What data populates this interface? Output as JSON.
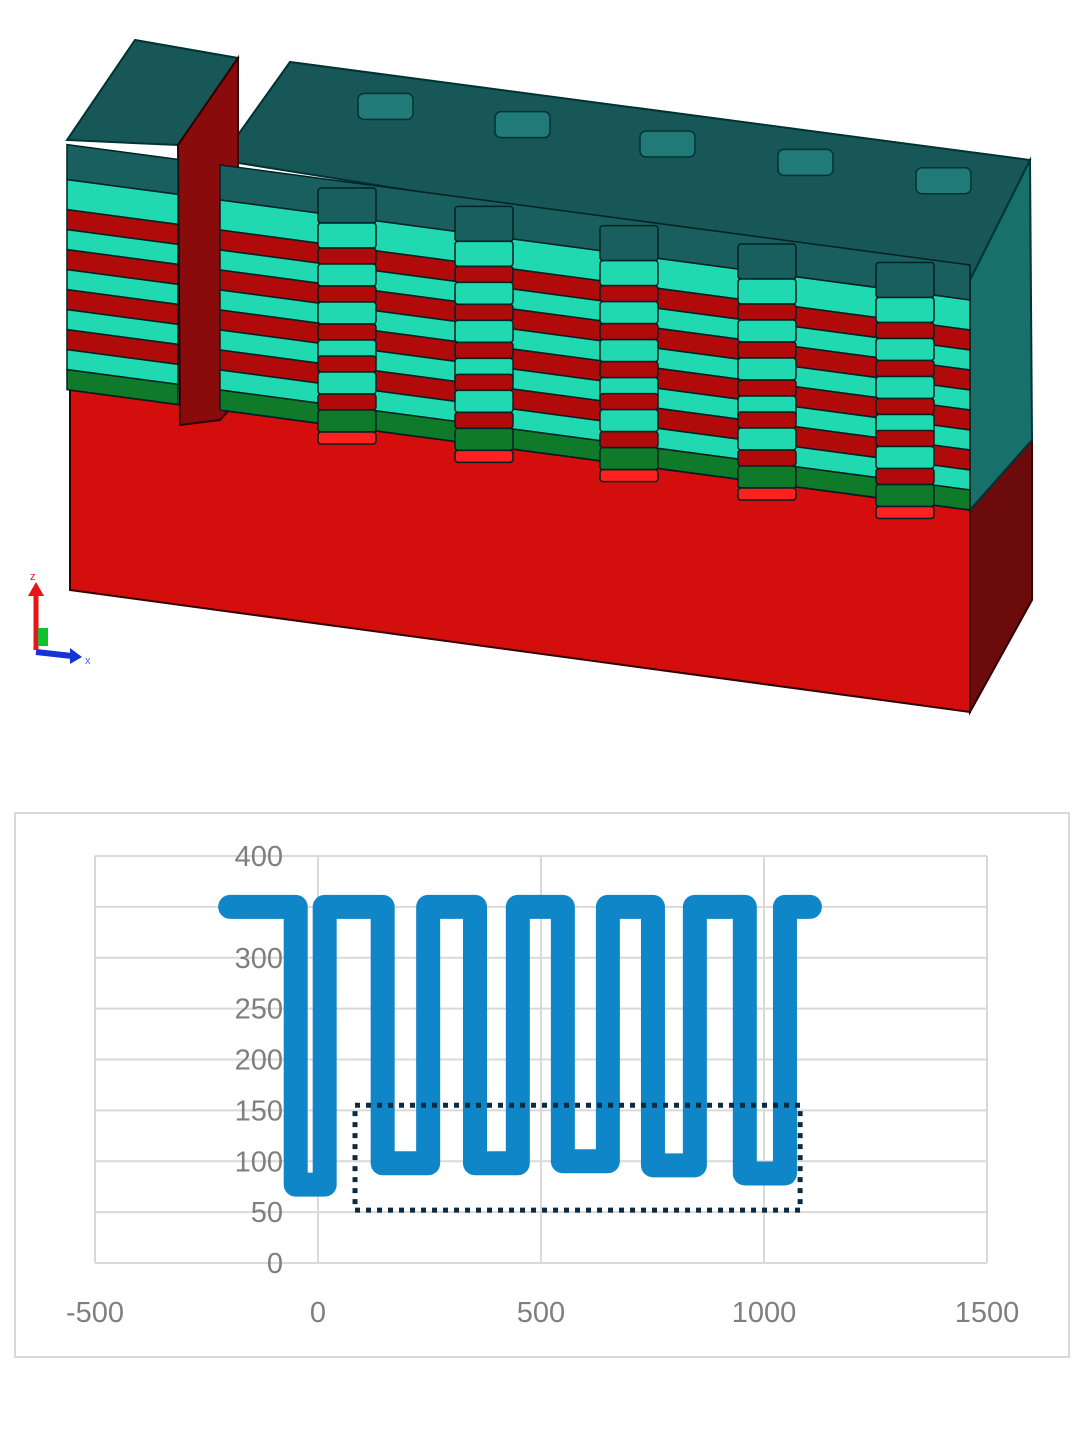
{
  "model": {
    "colors": {
      "cap": "#1a5f5f",
      "cap_top": "#175757",
      "teal": "#20d9b0",
      "red_layer": "#b00a0a",
      "green": "#0e7a2a",
      "substrate": "#d40d0d",
      "substrate_side": "#6b0b0b"
    },
    "axis_triad": {
      "labels": [
        "z",
        "x"
      ]
    }
  },
  "chart_data": {
    "type": "line",
    "title": "",
    "xlabel": "",
    "ylabel": "",
    "xlim": [
      -500,
      1500
    ],
    "ylim": [
      0,
      400
    ],
    "x_ticks": [
      "-500",
      "0",
      "500",
      "1000",
      "1500"
    ],
    "y_ticks": [
      "0",
      "50",
      "100",
      "150",
      "200",
      "250",
      "300",
      "350",
      "400"
    ],
    "grid": true,
    "series": [
      {
        "color": "#0f86c8",
        "points": [
          [
            -197,
            350
          ],
          [
            -50,
            350
          ],
          [
            -50,
            77
          ],
          [
            15,
            77
          ],
          [
            15,
            350
          ],
          [
            145,
            350
          ],
          [
            145,
            98
          ],
          [
            247,
            98
          ],
          [
            247,
            350
          ],
          [
            352,
            350
          ],
          [
            352,
            98
          ],
          [
            448,
            98
          ],
          [
            448,
            350
          ],
          [
            549,
            350
          ],
          [
            549,
            100
          ],
          [
            650,
            100
          ],
          [
            650,
            350
          ],
          [
            751,
            350
          ],
          [
            751,
            96
          ],
          [
            845,
            96
          ],
          [
            845,
            350
          ],
          [
            957,
            350
          ],
          [
            957,
            88
          ],
          [
            1047,
            88
          ],
          [
            1047,
            350
          ],
          [
            1103,
            350
          ]
        ]
      }
    ],
    "annotation_box": {
      "style": "dotted",
      "color": "#0d2a40",
      "x": [
        83,
        1081
      ],
      "y": [
        52,
        155
      ]
    }
  }
}
